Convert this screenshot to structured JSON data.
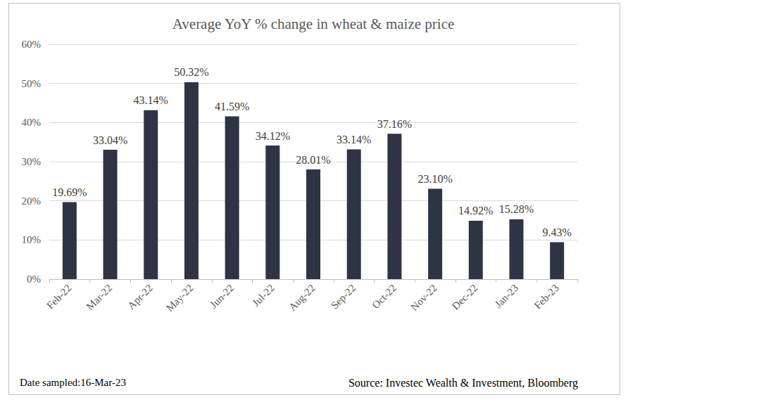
{
  "chart_data": {
    "type": "bar",
    "title": "Average YoY % change in wheat & maize price",
    "categories": [
      "Feb-22",
      "Mar-22",
      "Apr-22",
      "May-22",
      "Jun-22",
      "Jul-22",
      "Aug-22",
      "Sep-22",
      "Oct-22",
      "Nov-22",
      "Dec-22",
      "Jan-23",
      "Feb-23"
    ],
    "values": [
      19.69,
      33.04,
      43.14,
      50.32,
      41.59,
      34.12,
      28.01,
      33.14,
      37.16,
      23.1,
      14.92,
      15.28,
      9.43
    ],
    "value_labels": [
      "19.69%",
      "33.04%",
      "43.14%",
      "50.32%",
      "41.59%",
      "34.12%",
      "28.01%",
      "33.14%",
      "37.16%",
      "23.10%",
      "14.92%",
      "15.28%",
      "9.43%"
    ],
    "color": "#2e3444",
    "ylim": [
      0,
      60
    ],
    "yticks": [
      {
        "value": 0,
        "label": "0%"
      },
      {
        "value": 10,
        "label": "10%"
      },
      {
        "value": 20,
        "label": "20%"
      },
      {
        "value": 30,
        "label": "30%"
      },
      {
        "value": 40,
        "label": "40%"
      },
      {
        "value": 50,
        "label": "50%"
      },
      {
        "value": 60,
        "label": "60%"
      }
    ],
    "grid": true,
    "data_labels": true,
    "annotations": [
      "Date sampled:16-Mar-23",
      "Source: Investec Wealth & Investment, Bloomberg"
    ]
  }
}
